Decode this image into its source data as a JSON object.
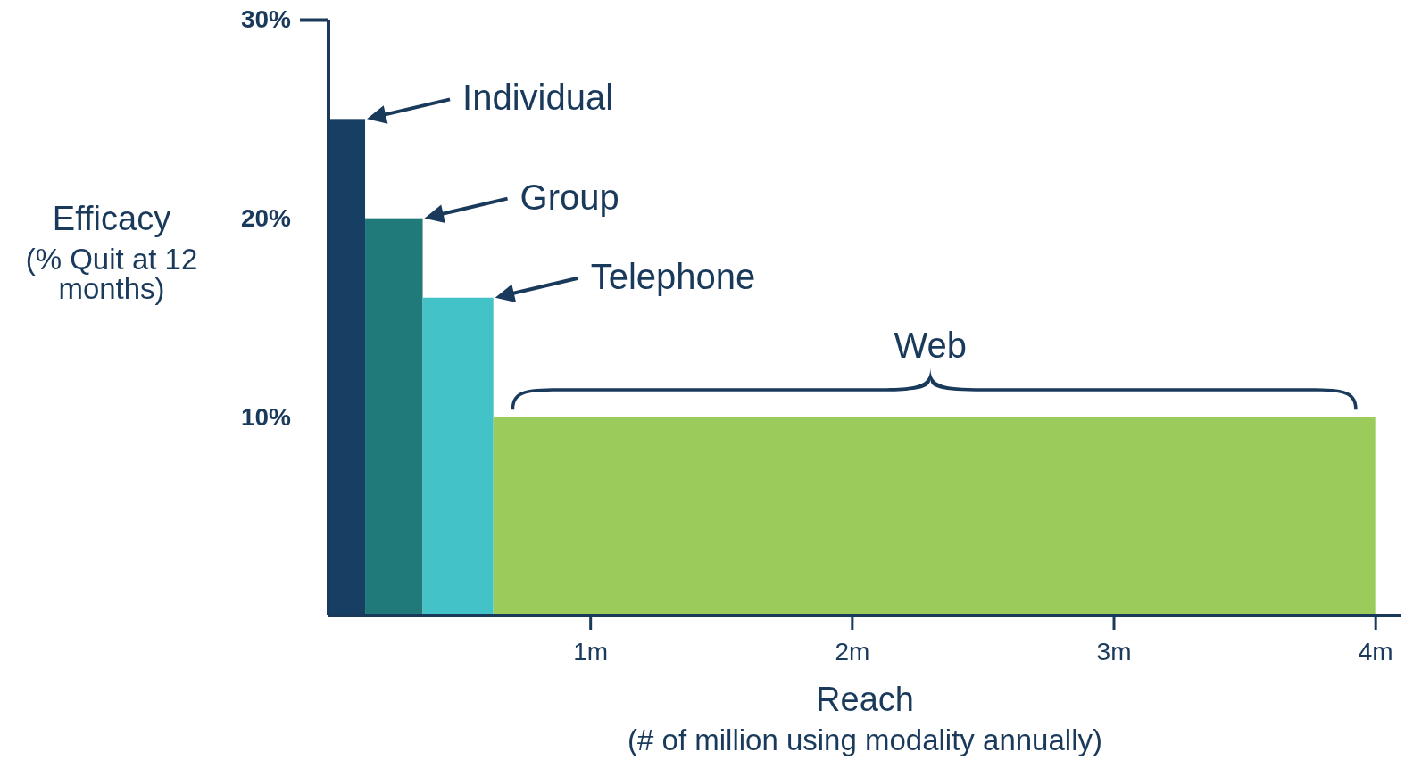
{
  "chart_data": {
    "type": "histogram",
    "bins": [
      0,
      0.14,
      0.36,
      0.63,
      4.0
    ],
    "values": [
      25,
      20,
      16,
      10
    ],
    "colors": [
      "#173f63",
      "#217a7a",
      "#43c2c8",
      "#9bcb5b"
    ],
    "xlim": [
      0,
      4.1
    ],
    "xticks": [
      {
        "value": 1,
        "label": "1m"
      },
      {
        "value": 2,
        "label": "2m"
      },
      {
        "value": 3,
        "label": "3m"
      },
      {
        "value": 4,
        "label": "4m"
      }
    ],
    "ylim": [
      0,
      30
    ],
    "yticks": [
      {
        "value": 10,
        "label": "10%"
      },
      {
        "value": 20,
        "label": "20%"
      },
      {
        "value": 30,
        "label": "30%"
      }
    ],
    "xlabel": "Reach\n(# of million using modality annually)",
    "ylabel": "Efficacy\n(% Quit at 12\nmonths)",
    "annotations": [
      {
        "text": "Individual",
        "x": 0.14,
        "y": 25
      },
      {
        "text": "Group",
        "x": 0.36,
        "y": 20
      },
      {
        "text": "Telephone",
        "x": 0.63,
        "y": 16
      },
      {
        "text": "Web",
        "x": 2.3,
        "y": 10
      }
    ]
  }
}
